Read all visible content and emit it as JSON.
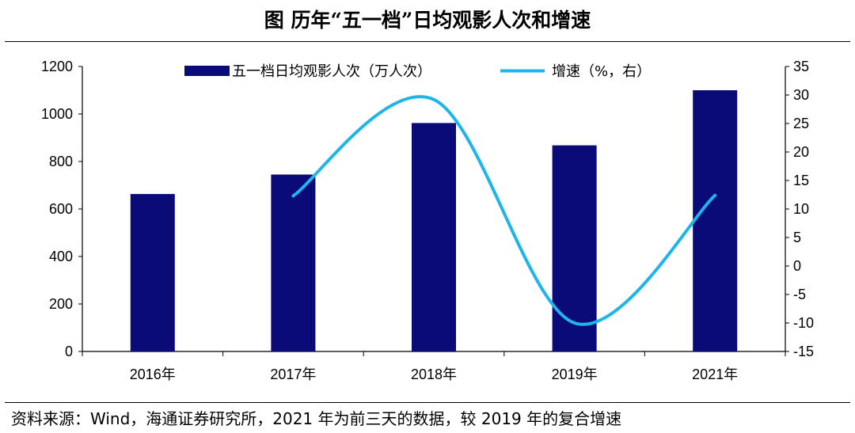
{
  "title": "图  历年“五一档”日均观影人次和增速",
  "source": "资料来源：Wind，海通证券研究所，2021 年为前三天的数据，较 2019 年的复合增速",
  "chart_data": {
    "type": "bar",
    "categories": [
      "2016年",
      "2017年",
      "2018年",
      "2019年",
      "2021年"
    ],
    "series": [
      {
        "name": "五一档日均观影人次（万人次）",
        "type": "bar",
        "axis": "left",
        "values": [
          663,
          745,
          962,
          868,
          1100
        ],
        "color": "#0a0a78"
      },
      {
        "name": "增速（%，右）",
        "type": "line",
        "axis": "right",
        "values": [
          null,
          12.3,
          29.2,
          -10.0,
          12.4
        ],
        "color": "#1fb4ea"
      }
    ],
    "yleft": {
      "min": 0,
      "max": 1200,
      "step": 200,
      "ticks": [
        "0",
        "200",
        "400",
        "600",
        "800",
        "1000",
        "1200"
      ]
    },
    "yright": {
      "min": -15,
      "max": 35,
      "step": 5,
      "ticks": [
        "-15",
        "-10",
        "-5",
        "0",
        "5",
        "10",
        "15",
        "20",
        "25",
        "30",
        "35"
      ]
    },
    "legend": "top-center"
  }
}
